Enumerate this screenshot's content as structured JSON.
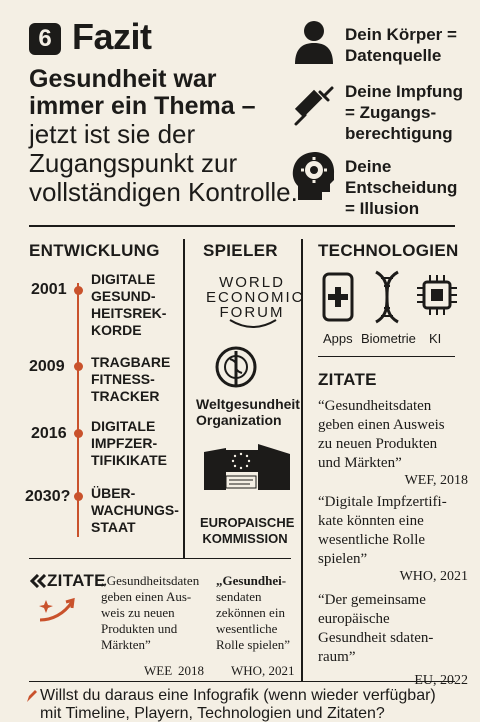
{
  "header": {
    "badge": "6",
    "title": "Fazit",
    "headline_bold_1": "Gesundheit war",
    "headline_bold_2": "immer ein Thema –",
    "headline_line_3": "jetzt ist sie der",
    "headline_line_4": "Zugangspunkt zur",
    "headline_line_5": "vollständigen Kontrolle."
  },
  "points": [
    {
      "icon": "person-icon",
      "line1": "Dein Körper =",
      "line2": "Datenquelle",
      "line3": ""
    },
    {
      "icon": "syringe-icon",
      "line1": "Deine Impfung",
      "line2": "= Zugangs-",
      "line3": "berechtigung"
    },
    {
      "icon": "head-gear-icon",
      "line1": "Deine",
      "line2": "Entscheidung",
      "line3": "= Illusion"
    }
  ],
  "development": {
    "title": "ENTWICKLUNG",
    "items": [
      {
        "year": "2001",
        "l1": "DIGITALE",
        "l2": "GESUND-",
        "l3": "HEITSREK-",
        "l4": "KORDE"
      },
      {
        "year": "2009",
        "l1": "TRAGBARE",
        "l2": "FITNESS-",
        "l3": "TRACKER",
        "l4": ""
      },
      {
        "year": "2016",
        "l1": "DIGITALE",
        "l2": "IMPFZER-",
        "l3": "TIFIKIKATE",
        "l4": ""
      },
      {
        "year": "2030?",
        "l1": "ÜBER-",
        "l2": "WACHUNGS-",
        "l3": "STAAT",
        "l4": ""
      }
    ],
    "accent": "#c9522c"
  },
  "players": {
    "title": "SPIELER",
    "wef_l1": "WORLD",
    "wef_l2": "ECONOMIC",
    "wef_l3": "FORUM",
    "who_l1": "Weltgesundheit",
    "who_l2": "Organization",
    "eu_l1": "EUROPAISCHE",
    "eu_l2": "KOMMISSION"
  },
  "technologies": {
    "title": "TECHNOLOGIEN",
    "items": [
      {
        "icon": "phone-plus-icon",
        "label": "Apps"
      },
      {
        "icon": "dna-icon",
        "label": "Biometrie"
      },
      {
        "icon": "chip-icon",
        "label": "KI"
      }
    ]
  },
  "quotes": {
    "title": "ZITATE",
    "q1_l1": "“Gesundheitsdaten",
    "q1_l2": "geben einen Ausweis",
    "q1_l3": "zu neuen Produkten",
    "q1_l4": "und Märkten”",
    "q1_src": "WEF, 2018",
    "q2_l1": "“Digitale Impfzertifi-",
    "q2_l2": "kate könnten eine",
    "q2_l3": "wesentliche Rolle",
    "q2_l4": "spielen”",
    "q2_src": "WHO, 2021",
    "q3_l1": "“Der gemeinsame",
    "q3_l2": "europäische",
    "q3_l3": "Gesundheit sdaten-",
    "q3_l4": "raum”",
    "q3_src": "EU, 2022"
  },
  "bottom_quotes": {
    "title": "ZITATE",
    "a_l1": "„Gesundheitsdaten",
    "a_l2": "geben einen Aus-",
    "a_l3": "weis zu neuen",
    "a_l4": "Produkten und",
    "a_l5": "Märkten”",
    "a_src1": "WEE",
    "a_src2": "2018",
    "b_l1": "„Gesundhei-",
    "b_l2": "sendaten",
    "b_l3": "zekönnen ein",
    "b_l4": "wesentliche",
    "b_l5": "Rolle spielen”",
    "b_src": "WHO, 2021"
  },
  "footer": {
    "line1": "Willst du daraus eine Infografik (wenn wieder verfügbar)",
    "line2": "mit Timeline, Playern, Technologien und Zitaten?"
  }
}
